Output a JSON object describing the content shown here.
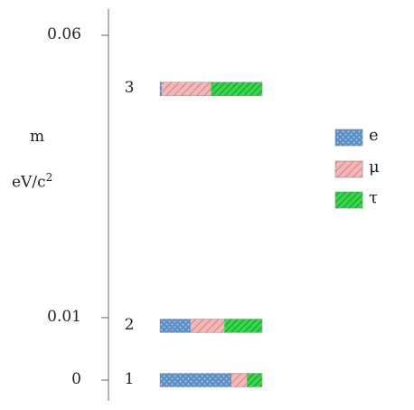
{
  "chart_data": {
    "type": "bar",
    "orientation": "horizontal-stacked",
    "ylabel_line1": "m",
    "ylabel_line2_base": "eV/c",
    "ylabel_line2_sup": "2",
    "yticks": [
      {
        "label": "0.06",
        "value": 0.06
      },
      {
        "label": "0.01",
        "value": 0.01
      },
      {
        "label": "0",
        "value": 0
      }
    ],
    "series": [
      {
        "name": "e",
        "color": "#5b8fc7",
        "pattern": "dots"
      },
      {
        "name": "μ",
        "color": "#f2a7a7",
        "pattern": "hatch-light"
      },
      {
        "name": "τ",
        "color": "#2ecc40",
        "pattern": "hatch-dense"
      }
    ],
    "states": [
      {
        "label": "3",
        "mass": 0.0505,
        "fractions": [
          0.02,
          0.48,
          0.5
        ]
      },
      {
        "label": "2",
        "mass": 0.0087,
        "fractions": [
          0.3,
          0.33,
          0.37
        ]
      },
      {
        "label": "1",
        "mass": 0.0,
        "fractions": [
          0.7,
          0.15,
          0.15
        ]
      }
    ]
  }
}
